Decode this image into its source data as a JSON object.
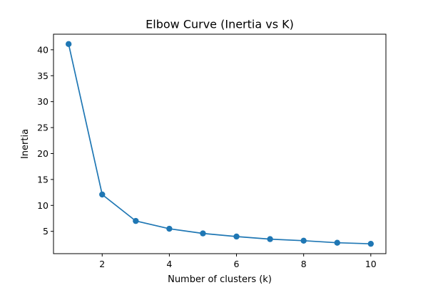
{
  "chart_data": {
    "type": "line",
    "title": "Elbow Curve (Inertia vs K)",
    "xlabel": "Number of clusters (k)",
    "ylabel": "Inertia",
    "x": [
      1,
      2,
      3,
      4,
      5,
      6,
      7,
      8,
      9,
      10
    ],
    "series": [
      {
        "values": [
          41.1,
          12.1,
          7.0,
          5.5,
          4.6,
          4.0,
          3.5,
          3.2,
          2.8,
          2.6
        ],
        "color": "#1f77b4",
        "marker": "circle"
      }
    ],
    "xticks": [
      2,
      4,
      6,
      8,
      10
    ],
    "yticks": [
      5,
      10,
      15,
      20,
      25,
      30,
      35,
      40
    ],
    "xlim": [
      0.55,
      10.45
    ],
    "ylim": [
      0.7,
      43.0
    ],
    "grid": false,
    "legend": "none"
  }
}
